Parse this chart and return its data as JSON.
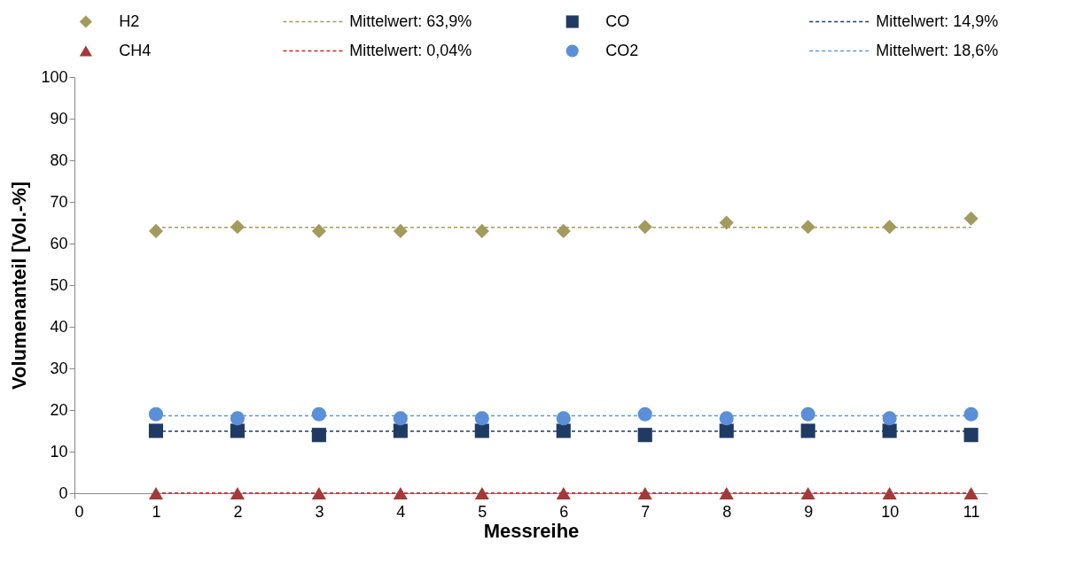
{
  "chart_data": {
    "type": "scatter",
    "xlabel": "Messreihe",
    "ylabel": "Volumenanteil [Vol.-%]",
    "xlim": [
      0,
      11.2
    ],
    "xticks": [
      0,
      1,
      2,
      3,
      4,
      5,
      6,
      7,
      8,
      9,
      10,
      11
    ],
    "ylim": [
      0,
      100
    ],
    "yticks": [
      0,
      10,
      20,
      30,
      40,
      50,
      60,
      70,
      80,
      90,
      100
    ],
    "grid": false,
    "legend": "top",
    "x": [
      1,
      2,
      3,
      4,
      5,
      6,
      7,
      8,
      9,
      10,
      11
    ],
    "series": [
      {
        "name": "H2",
        "color": "#a39a5e",
        "marker": "diamond",
        "values": [
          63,
          64,
          63,
          63,
          63,
          63,
          64,
          65,
          64,
          64,
          66
        ]
      },
      {
        "name": "Mittelwert: 63,9%",
        "type": "line",
        "line_style": "dashed",
        "marker": "none",
        "color": "#a39a5e",
        "values": [
          63.9,
          63.9,
          63.9,
          63.9,
          63.9,
          63.9,
          63.9,
          63.9,
          63.9,
          63.9,
          63.9
        ]
      },
      {
        "name": "CO",
        "color": "#1f3b63",
        "marker": "square",
        "values": [
          15,
          15,
          14,
          15,
          15,
          15,
          14,
          15,
          15,
          15,
          14
        ]
      },
      {
        "name": "Mittelwert: 14,9%",
        "type": "line",
        "line_style": "dashed",
        "marker": "none",
        "color": "#1f3b63",
        "values": [
          14.9,
          14.9,
          14.9,
          14.9,
          14.9,
          14.9,
          14.9,
          14.9,
          14.9,
          14.9,
          14.9
        ]
      },
      {
        "name": "CH4",
        "color": "#a33a3a",
        "marker": "triangle",
        "values": [
          0,
          0,
          0,
          0,
          0,
          0,
          0,
          0,
          0,
          0,
          0
        ]
      },
      {
        "name": "Mittelwert: 0,04%",
        "type": "line",
        "line_style": "dashed",
        "marker": "none",
        "color": "#e02020",
        "values": [
          0.04,
          0.04,
          0.04,
          0.04,
          0.04,
          0.04,
          0.04,
          0.04,
          0.04,
          0.04,
          0.04
        ]
      },
      {
        "name": "CO2",
        "color": "#5b8fd8",
        "marker": "circle",
        "values": [
          19,
          18,
          19,
          18,
          18,
          18,
          19,
          18,
          19,
          18,
          19
        ]
      },
      {
        "name": "Mittelwert: 18,6%",
        "type": "line",
        "line_style": "dashed",
        "marker": "none",
        "color": "#5b9bd5",
        "values": [
          18.6,
          18.6,
          18.6,
          18.6,
          18.6,
          18.6,
          18.6,
          18.6,
          18.6,
          18.6,
          18.6
        ]
      }
    ]
  }
}
